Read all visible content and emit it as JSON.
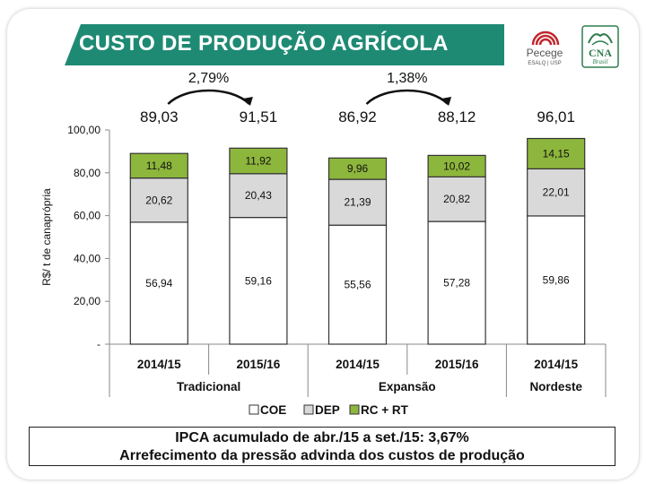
{
  "slide": {
    "title": "CUSTO DE PRODUÇÃO AGRÍCOLA",
    "accent_color": "#1f8a74"
  },
  "logos": {
    "pecege_name": "Pecege",
    "pecege_sub": "ESALQ | USP",
    "cna_name": "CNA",
    "cna_sub": "Brasil"
  },
  "chart_data": {
    "type": "bar",
    "stacked": true,
    "ylabel": "R$/ t de canaprópria",
    "ylim": [
      0,
      100
    ],
    "yticks": [
      "-",
      "20,00",
      "40,00",
      "60,00",
      "80,00",
      "100,00"
    ],
    "categories": [
      "2014/15",
      "2015/16",
      "2014/15",
      "2015/16",
      "2014/15"
    ],
    "groups": [
      {
        "label": "Tradicional",
        "span": [
          0,
          1
        ]
      },
      {
        "label": "Expansão",
        "span": [
          2,
          3
        ]
      },
      {
        "label": "Nordeste",
        "span": [
          4,
          4
        ]
      }
    ],
    "series": [
      {
        "name": "COE",
        "color": "#ffffff",
        "values": [
          56.94,
          59.16,
          55.56,
          57.28,
          59.86
        ],
        "labels": [
          "56,94",
          "59,16",
          "55,56",
          "57,28",
          "59,86"
        ]
      },
      {
        "name": "DEP",
        "color": "#d9d9d9",
        "values": [
          20.62,
          20.43,
          21.39,
          20.82,
          22.01
        ],
        "labels": [
          "20,62",
          "20,43",
          "21,39",
          "20,82",
          "22,01"
        ]
      },
      {
        "name": "RC + RT",
        "color": "#8db63c",
        "values": [
          11.48,
          11.92,
          9.96,
          10.02,
          14.15
        ],
        "labels": [
          "11,48",
          "11,92",
          "9,96",
          "10,02",
          "14,15"
        ]
      }
    ],
    "totals": [
      "89,03",
      "91,51",
      "86,92",
      "88,12",
      "96,01"
    ],
    "changes": [
      {
        "label": "2,79%",
        "from": 0,
        "to": 1
      },
      {
        "label": "1,38%",
        "from": 2,
        "to": 3
      }
    ],
    "legend_position": "bottom",
    "grid": false
  },
  "footer": {
    "line1": "IPCA acumulado de abr./15 a set./15: 3,67%",
    "line2": "Arrefecimento da pressão advinda dos custos de produção"
  }
}
